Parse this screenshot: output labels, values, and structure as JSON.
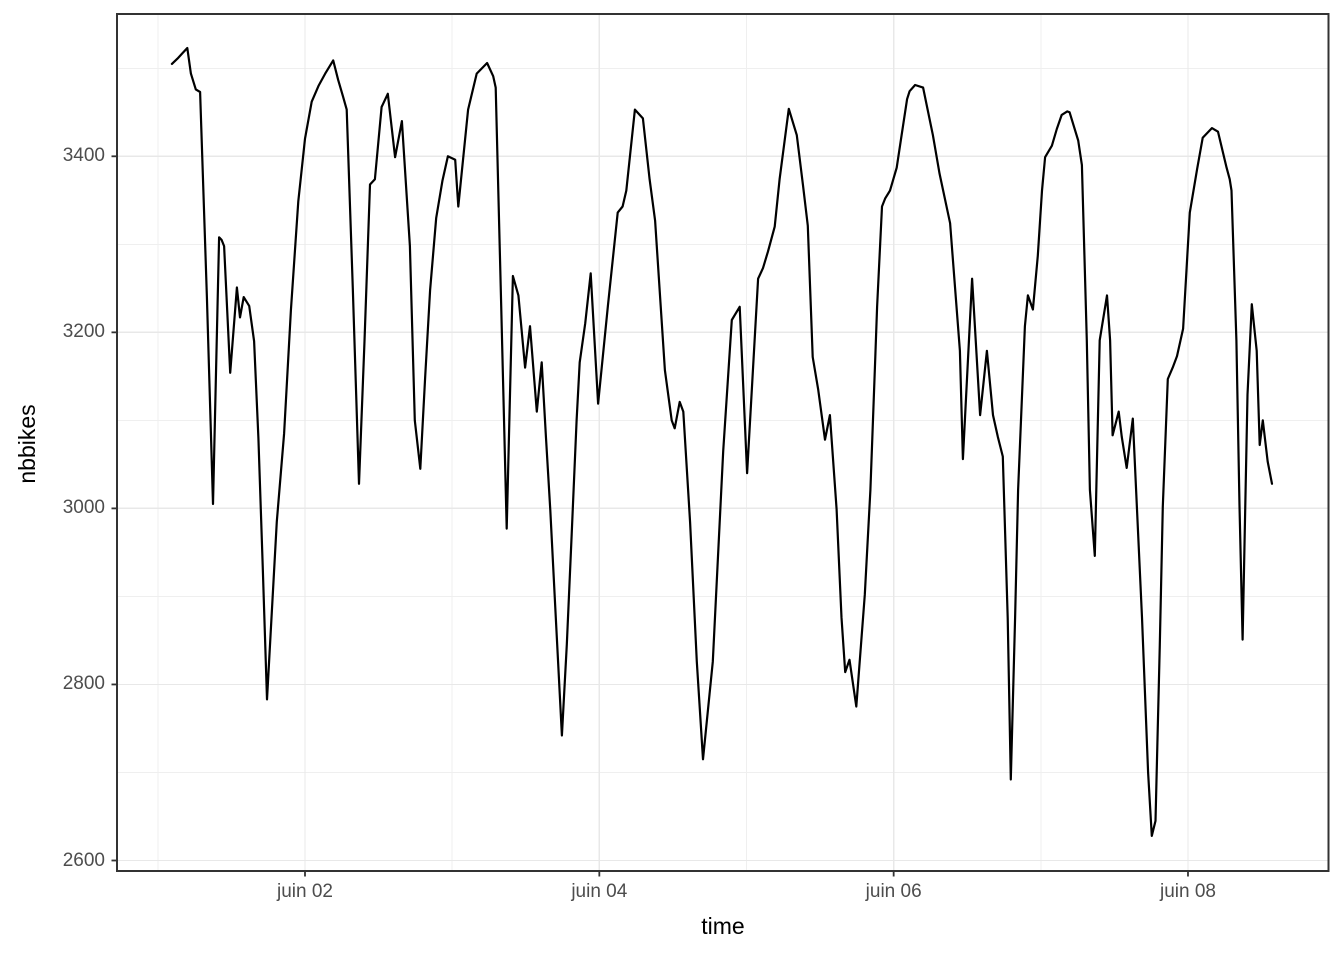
{
  "chart_data": {
    "type": "line",
    "title": "",
    "xlabel": "time",
    "ylabel": "nbbikes",
    "grid": true,
    "legend": "none",
    "x_unit": "hours since juin 01 00:00",
    "x_domain_hours": [
      -6.65,
      190.9
    ],
    "ylim": [
      2588,
      3562
    ],
    "y_major_ticks": [
      {
        "label": "2600",
        "value": 2600
      },
      {
        "label": "2800",
        "value": 2800
      },
      {
        "label": "3000",
        "value": 3000
      },
      {
        "label": "3200",
        "value": 3200
      },
      {
        "label": "3400",
        "value": 3400
      }
    ],
    "y_minor_gridlines": [
      2700,
      2900,
      3100,
      3300,
      3500
    ],
    "x_major_ticks": [
      {
        "label": "juin 02",
        "hour": 24
      },
      {
        "label": "juin 04",
        "hour": 72
      },
      {
        "label": "juin 06",
        "hour": 120
      },
      {
        "label": "juin 08",
        "hour": 168
      }
    ],
    "x_minor_gridlines_hours": [
      0,
      48,
      96,
      144
    ],
    "colors": {
      "line": "#000000",
      "grid_major": "#e8e8e8",
      "grid_minor": "#efefef",
      "panel_border": "#333333",
      "tick_mark": "#333333",
      "tick_label": "#4d4d4d",
      "axis_title": "#000000",
      "background": "#ffffff"
    },
    "series": [
      {
        "name": "nbbikes",
        "points": [
          [
            2.3,
            3505
          ],
          [
            3.2,
            3511
          ],
          [
            4.0,
            3517
          ],
          [
            4.8,
            3523
          ],
          [
            5.4,
            3494
          ],
          [
            6.2,
            3476
          ],
          [
            6.9,
            3473
          ],
          [
            8.0,
            3240
          ],
          [
            9.0,
            3005
          ],
          [
            10.0,
            3308
          ],
          [
            10.4,
            3305
          ],
          [
            10.8,
            3298
          ],
          [
            11.8,
            3154
          ],
          [
            12.9,
            3251
          ],
          [
            13.4,
            3217
          ],
          [
            14.0,
            3240
          ],
          [
            14.9,
            3230
          ],
          [
            15.7,
            3190
          ],
          [
            16.4,
            3080
          ],
          [
            17.1,
            2935
          ],
          [
            17.8,
            2783
          ],
          [
            19.4,
            2985
          ],
          [
            20.6,
            3085
          ],
          [
            21.7,
            3225
          ],
          [
            22.9,
            3349
          ],
          [
            24.0,
            3420
          ],
          [
            25.1,
            3462
          ],
          [
            26.2,
            3480
          ],
          [
            27.3,
            3494
          ],
          [
            28.6,
            3509
          ],
          [
            29.4,
            3487
          ],
          [
            30.2,
            3468
          ],
          [
            30.8,
            3453
          ],
          [
            31.8,
            3250
          ],
          [
            32.8,
            3028
          ],
          [
            33.7,
            3190
          ],
          [
            34.6,
            3368
          ],
          [
            35.4,
            3374
          ],
          [
            36.5,
            3456
          ],
          [
            37.5,
            3471
          ],
          [
            38.7,
            3399
          ],
          [
            39.8,
            3440
          ],
          [
            41.1,
            3298
          ],
          [
            41.9,
            3100
          ],
          [
            42.8,
            3045
          ],
          [
            43.6,
            3150
          ],
          [
            44.4,
            3248
          ],
          [
            45.4,
            3330
          ],
          [
            46.4,
            3372
          ],
          [
            47.3,
            3400
          ],
          [
            48.5,
            3396
          ],
          [
            49.0,
            3343
          ],
          [
            50.6,
            3453
          ],
          [
            52.0,
            3494
          ],
          [
            53.7,
            3506
          ],
          [
            54.7,
            3491
          ],
          [
            55.1,
            3478
          ],
          [
            56.0,
            3230
          ],
          [
            56.9,
            2977
          ],
          [
            57.9,
            3264
          ],
          [
            58.8,
            3242
          ],
          [
            59.9,
            3160
          ],
          [
            60.7,
            3207
          ],
          [
            61.8,
            3110
          ],
          [
            62.6,
            3166
          ],
          [
            63.3,
            3080
          ],
          [
            64.0,
            2998
          ],
          [
            64.8,
            2889
          ],
          [
            65.9,
            2742
          ],
          [
            66.7,
            2845
          ],
          [
            67.5,
            2971
          ],
          [
            68.3,
            3100
          ],
          [
            68.8,
            3166
          ],
          [
            69.7,
            3210
          ],
          [
            70.6,
            3267
          ],
          [
            71.8,
            3119
          ],
          [
            73.4,
            3230
          ],
          [
            75.0,
            3336
          ],
          [
            75.8,
            3343
          ],
          [
            76.4,
            3361
          ],
          [
            77.8,
            3453
          ],
          [
            79.1,
            3443
          ],
          [
            80.2,
            3374
          ],
          [
            81.1,
            3327
          ],
          [
            82.7,
            3157
          ],
          [
            83.5,
            3116
          ],
          [
            83.8,
            3100
          ],
          [
            84.3,
            3091
          ],
          [
            85.1,
            3121
          ],
          [
            85.7,
            3110
          ],
          [
            86.8,
            2984
          ],
          [
            87.9,
            2826
          ],
          [
            88.9,
            2715
          ],
          [
            90.5,
            2826
          ],
          [
            92.2,
            3065
          ],
          [
            93.6,
            3214
          ],
          [
            94.9,
            3229
          ],
          [
            96.1,
            3040
          ],
          [
            97.9,
            3261
          ],
          [
            98.7,
            3273
          ],
          [
            99.5,
            3292
          ],
          [
            100.6,
            3320
          ],
          [
            101.4,
            3374
          ],
          [
            102.9,
            3454
          ],
          [
            104.2,
            3424
          ],
          [
            105.2,
            3368
          ],
          [
            106.0,
            3321
          ],
          [
            106.8,
            3172
          ],
          [
            107.7,
            3135
          ],
          [
            108.8,
            3078
          ],
          [
            109.6,
            3106
          ],
          [
            110.7,
            2999
          ],
          [
            111.5,
            2876
          ],
          [
            112.1,
            2814
          ],
          [
            112.8,
            2828
          ],
          [
            113.9,
            2775
          ],
          [
            115.3,
            2902
          ],
          [
            116.2,
            3021
          ],
          [
            117.0,
            3172
          ],
          [
            117.3,
            3229
          ],
          [
            118.1,
            3343
          ],
          [
            118.6,
            3352
          ],
          [
            119.4,
            3361
          ],
          [
            120.5,
            3387
          ],
          [
            121.3,
            3424
          ],
          [
            122.2,
            3465
          ],
          [
            122.6,
            3474
          ],
          [
            123.5,
            3481
          ],
          [
            124.8,
            3478
          ],
          [
            126.4,
            3424
          ],
          [
            127.5,
            3380
          ],
          [
            129.2,
            3324
          ],
          [
            130.8,
            3179
          ],
          [
            131.3,
            3056
          ],
          [
            132.8,
            3261
          ],
          [
            134.1,
            3106
          ],
          [
            135.2,
            3179
          ],
          [
            136.2,
            3106
          ],
          [
            137.0,
            3081
          ],
          [
            137.8,
            3059
          ],
          [
            138.6,
            2876
          ],
          [
            139.1,
            2692
          ],
          [
            139.8,
            2876
          ],
          [
            140.3,
            3021
          ],
          [
            141.4,
            3207
          ],
          [
            141.9,
            3242
          ],
          [
            142.7,
            3226
          ],
          [
            143.5,
            3287
          ],
          [
            144.2,
            3361
          ],
          [
            144.7,
            3399
          ],
          [
            145.8,
            3412
          ],
          [
            146.6,
            3431
          ],
          [
            147.4,
            3447
          ],
          [
            148.3,
            3451
          ],
          [
            148.7,
            3450
          ],
          [
            150.1,
            3418
          ],
          [
            150.7,
            3390
          ],
          [
            151.5,
            3191
          ],
          [
            152.0,
            3021
          ],
          [
            152.8,
            2946
          ],
          [
            153.6,
            3191
          ],
          [
            154.8,
            3242
          ],
          [
            155.3,
            3191
          ],
          [
            155.7,
            3083
          ],
          [
            156.7,
            3110
          ],
          [
            157.2,
            3081
          ],
          [
            158.0,
            3046
          ],
          [
            159.0,
            3102
          ],
          [
            160.5,
            2876
          ],
          [
            161.5,
            2700
          ],
          [
            162.1,
            2628
          ],
          [
            162.7,
            2645
          ],
          [
            163.4,
            2845
          ],
          [
            163.9,
            3002
          ],
          [
            164.7,
            3147
          ],
          [
            165.5,
            3160
          ],
          [
            166.2,
            3173
          ],
          [
            167.2,
            3204
          ],
          [
            168.3,
            3336
          ],
          [
            169.5,
            3386
          ],
          [
            170.4,
            3421
          ],
          [
            171.9,
            3432
          ],
          [
            172.9,
            3428
          ],
          [
            174.3,
            3387
          ],
          [
            174.8,
            3374
          ],
          [
            175.1,
            3361
          ],
          [
            175.9,
            3191
          ],
          [
            176.4,
            3003
          ],
          [
            176.9,
            2851
          ],
          [
            177.7,
            3129
          ],
          [
            178.4,
            3232
          ],
          [
            179.2,
            3179
          ],
          [
            179.7,
            3072
          ],
          [
            180.2,
            3100
          ],
          [
            181.0,
            3053
          ],
          [
            181.7,
            3028
          ]
        ]
      }
    ]
  }
}
